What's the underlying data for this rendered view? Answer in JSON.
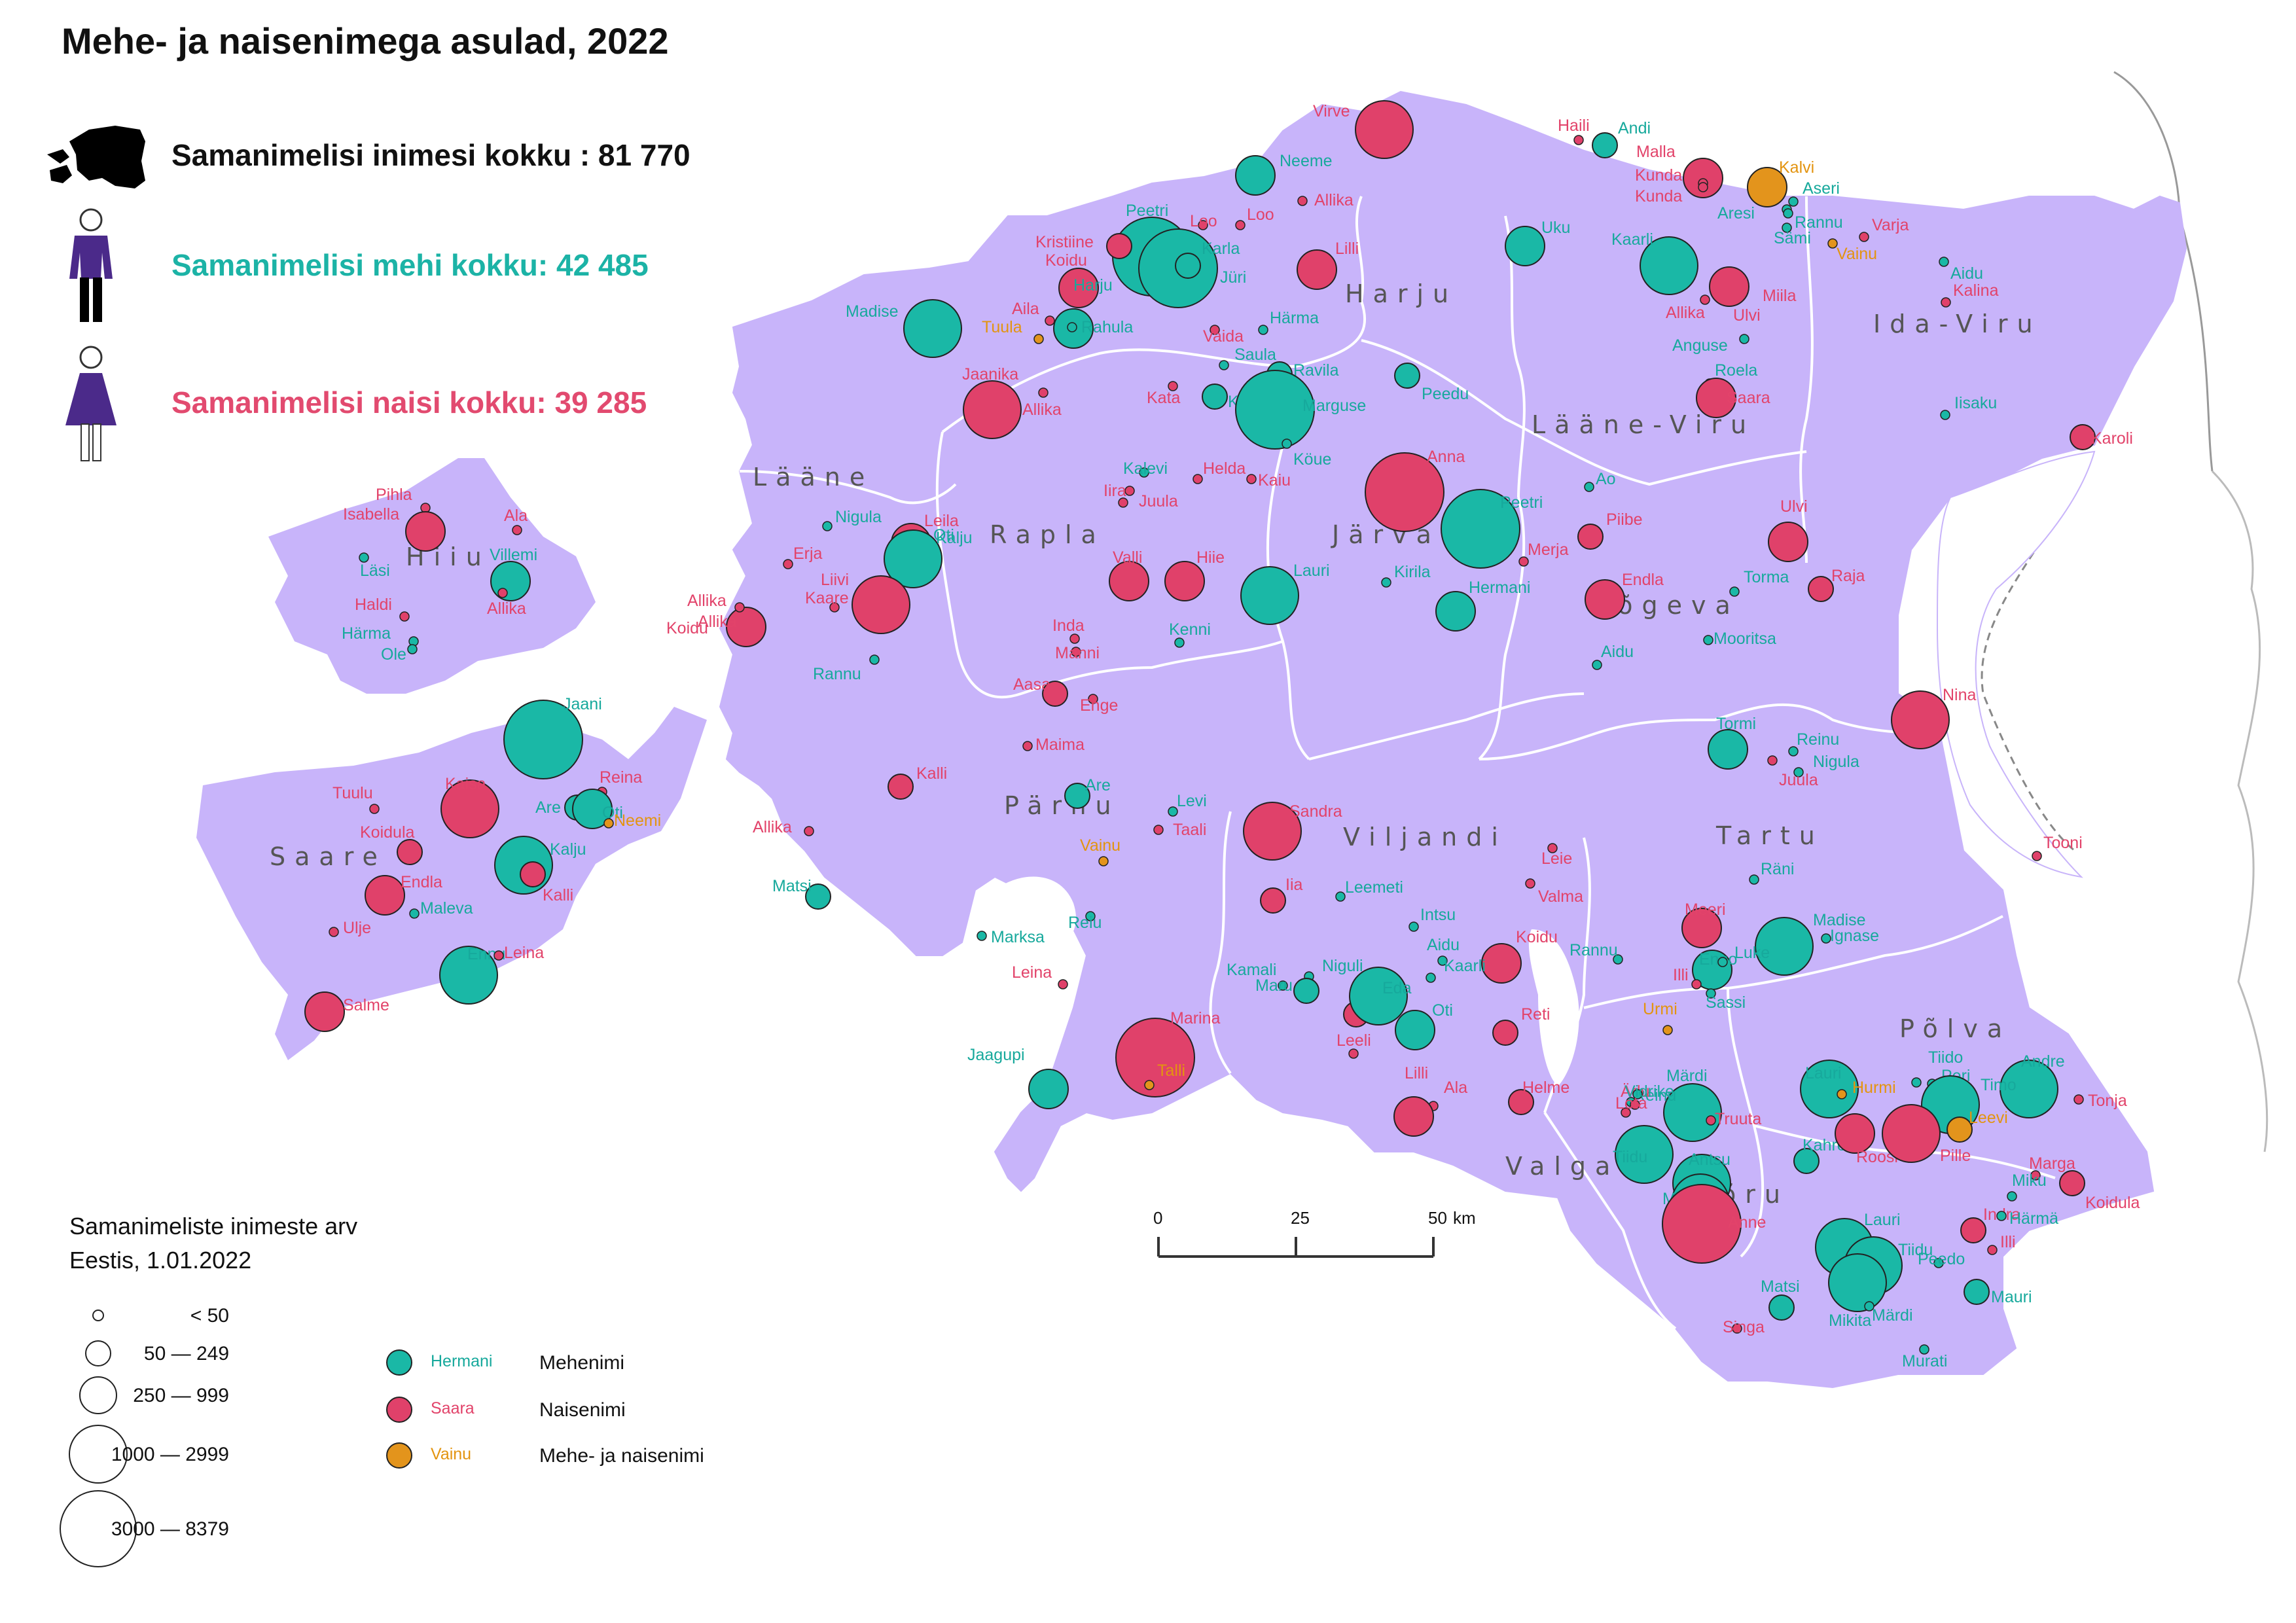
{
  "title": "Mehe- ja naisenimega asulad, 2022",
  "stats": {
    "total": "Samanimelisi inimesi kokku : 81 770",
    "male": "Samanimelisi mehi kokku: 42 485",
    "female": "Samanimelisi naisi kokku: 39 285"
  },
  "colors": {
    "land": "#c8b4fa",
    "male": "#1ab8a6",
    "female": "#e0416a",
    "both": "#e3941c",
    "male_label": "#17a99c",
    "female_label": "#e2436a",
    "both_label": "#e39410"
  },
  "counties": [
    "Harju",
    "Ida-Viru",
    "Lääne-Viru",
    "Lääne",
    "Hiiu",
    "Rapla",
    "Järva",
    "Jõgeva",
    "Saare",
    "Pärnu",
    "Viljandi",
    "Tartu",
    "Põlva",
    "Valga",
    "Võru"
  ],
  "places": [
    {
      "name": "Virve",
      "g": "f",
      "s": 4
    },
    {
      "name": "Haili",
      "g": "f",
      "s": 1
    },
    {
      "name": "Andi",
      "g": "m",
      "s": 2
    },
    {
      "name": "Neeme",
      "g": "m",
      "s": 3
    },
    {
      "name": "Allika",
      "g": "f",
      "s": 1
    },
    {
      "name": "Malla",
      "g": "f",
      "s": 3
    },
    {
      "name": "Kalvi",
      "g": "b",
      "s": 3
    },
    {
      "name": "Kunda",
      "g": "f",
      "s": 1
    },
    {
      "name": "Kunda",
      "g": "f",
      "s": 1
    },
    {
      "name": "Aseri",
      "g": "m",
      "s": 1
    },
    {
      "name": "Aresi",
      "g": "m",
      "s": 1
    },
    {
      "name": "Rannu",
      "g": "m",
      "s": 1
    },
    {
      "name": "Peetri",
      "g": "m",
      "s": 5
    },
    {
      "name": "Loo",
      "g": "f",
      "s": 1
    },
    {
      "name": "Loo",
      "g": "f",
      "s": 1
    },
    {
      "name": "Uku",
      "g": "m",
      "s": 3
    },
    {
      "name": "Sämi",
      "g": "m",
      "s": 1
    },
    {
      "name": "Varja",
      "g": "f",
      "s": 1
    },
    {
      "name": "Kristiine",
      "g": "f",
      "s": 2
    },
    {
      "name": "Karla",
      "g": "m",
      "s": 5
    },
    {
      "name": "Kaarli",
      "g": "m",
      "s": 4
    },
    {
      "name": "Vainu",
      "g": "b",
      "s": 1
    },
    {
      "name": "Koidu",
      "g": "f",
      "s": 3
    },
    {
      "name": "Lilli",
      "g": "f",
      "s": 3
    },
    {
      "name": "Jüri",
      "g": "m",
      "s": 2
    },
    {
      "name": "Aidu",
      "g": "m",
      "s": 1
    },
    {
      "name": "Miila",
      "g": "f",
      "s": 1
    },
    {
      "name": "Madise",
      "g": "m",
      "s": 4
    },
    {
      "name": "Aila",
      "g": "f",
      "s": 1
    },
    {
      "name": "Harju",
      "g": "m",
      "s": 3
    },
    {
      "name": "Kalina",
      "g": "f",
      "s": 1
    },
    {
      "name": "Allika",
      "g": "f",
      "s": 1
    },
    {
      "name": "Ulvi",
      "g": "f",
      "s": 3
    },
    {
      "name": "Tuula",
      "g": "b",
      "s": 1
    },
    {
      "name": "Rahula",
      "g": "m",
      "s": 1
    },
    {
      "name": "Härma",
      "g": "m",
      "s": 1
    },
    {
      "name": "Vaida",
      "g": "f",
      "s": 1
    },
    {
      "name": "Anguse",
      "g": "m",
      "s": 1
    },
    {
      "name": "Saula",
      "g": "m",
      "s": 1
    },
    {
      "name": "Ravila",
      "g": "m",
      "s": 2
    },
    {
      "name": "Roela",
      "g": "m",
      "s": 1
    },
    {
      "name": "Jaanika",
      "g": "f",
      "s": 4
    },
    {
      "name": "Peedu",
      "g": "m",
      "s": 2
    },
    {
      "name": "Saara",
      "g": "f",
      "s": 3
    },
    {
      "name": "Kata",
      "g": "f",
      "s": 1
    },
    {
      "name": "Karla",
      "g": "m",
      "s": 2
    },
    {
      "name": "Marguse",
      "g": "m",
      "s": 5
    },
    {
      "name": "Allika",
      "g": "f",
      "s": 1
    },
    {
      "name": "Iisaku",
      "g": "m",
      "s": 1
    },
    {
      "name": "Karoli",
      "g": "f",
      "s": 2
    },
    {
      "name": "Köue",
      "g": "m",
      "s": 1
    },
    {
      "name": "Kalevi",
      "g": "m",
      "s": 1
    },
    {
      "name": "Helda",
      "g": "f",
      "s": 1
    },
    {
      "name": "Anna",
      "g": "f",
      "s": 5
    },
    {
      "name": "Kaiu",
      "g": "f",
      "s": 1
    },
    {
      "name": "Ao",
      "g": "m",
      "s": 1
    },
    {
      "name": "Iira",
      "g": "f",
      "s": 1
    },
    {
      "name": "Juula",
      "g": "f",
      "s": 1
    },
    {
      "name": "Pihla",
      "g": "f",
      "s": 1
    },
    {
      "name": "Isabella",
      "g": "f",
      "s": 3
    },
    {
      "name": "Ala",
      "g": "f",
      "s": 1
    },
    {
      "name": "Nigula",
      "g": "m",
      "s": 1
    },
    {
      "name": "Leila",
      "g": "f",
      "s": 3
    },
    {
      "name": "Peetri",
      "g": "m",
      "s": 5
    },
    {
      "name": "Oti",
      "g": "m",
      "s": 3
    },
    {
      "name": "Kalju",
      "g": "m",
      "s": 4
    },
    {
      "name": "Piibe",
      "g": "f",
      "s": 2
    },
    {
      "name": "Ulvi",
      "g": "f",
      "s": 3
    },
    {
      "name": "Villemi",
      "g": "m",
      "s": 3
    },
    {
      "name": "Läsi",
      "g": "m",
      "s": 1
    },
    {
      "name": "Erja",
      "g": "f",
      "s": 1
    },
    {
      "name": "Valli",
      "g": "f",
      "s": 3
    },
    {
      "name": "Hiie",
      "g": "f",
      "s": 3
    },
    {
      "name": "Merja",
      "g": "f",
      "s": 1
    },
    {
      "name": "Allika",
      "g": "f",
      "s": 1
    },
    {
      "name": "Lauri",
      "g": "m",
      "s": 4
    },
    {
      "name": "Kirila",
      "g": "m",
      "s": 1
    },
    {
      "name": "Endla",
      "g": "f",
      "s": 3
    },
    {
      "name": "Torma",
      "g": "m",
      "s": 1
    },
    {
      "name": "Raja",
      "g": "f",
      "s": 2
    },
    {
      "name": "Haldi",
      "g": "f",
      "s": 1
    },
    {
      "name": "Allika",
      "g": "f",
      "s": 1
    },
    {
      "name": "Liivi",
      "g": "f",
      "s": 4
    },
    {
      "name": "Kaare",
      "g": "f",
      "s": 1
    },
    {
      "name": "Hermani",
      "g": "m",
      "s": 3
    },
    {
      "name": "Härma",
      "g": "m",
      "s": 1
    },
    {
      "name": "Koidu",
      "g": "f",
      "s": 3
    },
    {
      "name": "Allika",
      "g": "f",
      "s": 1
    },
    {
      "name": "Inda",
      "g": "f",
      "s": 1
    },
    {
      "name": "Kenni",
      "g": "m",
      "s": 1
    },
    {
      "name": "Mooritsa",
      "g": "m",
      "s": 1
    },
    {
      "name": "Ole",
      "g": "m",
      "s": 1
    },
    {
      "name": "Manni",
      "g": "f",
      "s": 1
    },
    {
      "name": "Aidu",
      "g": "m",
      "s": 1
    },
    {
      "name": "Rannu",
      "g": "m",
      "s": 1
    },
    {
      "name": "Aasa",
      "g": "f",
      "s": 2
    },
    {
      "name": "Enge",
      "g": "f",
      "s": 1
    },
    {
      "name": "Nina",
      "g": "f",
      "s": 4
    },
    {
      "name": "Jaani",
      "g": "m",
      "s": 5
    },
    {
      "name": "Maima",
      "g": "f",
      "s": 1
    },
    {
      "name": "Tormi",
      "g": "m",
      "s": 3
    },
    {
      "name": "Reinu",
      "g": "m",
      "s": 1
    },
    {
      "name": "Nigula",
      "g": "m",
      "s": 1
    },
    {
      "name": "Juula",
      "g": "f",
      "s": 1
    },
    {
      "name": "Kalli",
      "g": "f",
      "s": 2
    },
    {
      "name": "Are",
      "g": "m",
      "s": 2
    },
    {
      "name": "Tuulu",
      "g": "f",
      "s": 1
    },
    {
      "name": "Kaisa",
      "g": "f",
      "s": 4
    },
    {
      "name": "Reina",
      "g": "f",
      "s": 1
    },
    {
      "name": "Are",
      "g": "m",
      "s": 2
    },
    {
      "name": "Oti",
      "g": "m",
      "s": 3
    },
    {
      "name": "Neemi",
      "g": "b",
      "s": 1
    },
    {
      "name": "Levi",
      "g": "m",
      "s": 1
    },
    {
      "name": "Sandra",
      "g": "f",
      "s": 4
    },
    {
      "name": "Taali",
      "g": "f",
      "s": 1
    },
    {
      "name": "Koidula",
      "g": "f",
      "s": 2
    },
    {
      "name": "Kalju",
      "g": "m",
      "s": 4
    },
    {
      "name": "Allika",
      "g": "f",
      "s": 1
    },
    {
      "name": "Vainu",
      "g": "b",
      "s": 1
    },
    {
      "name": "Leie",
      "g": "f",
      "s": 1
    },
    {
      "name": "Tooni",
      "g": "f",
      "s": 1
    },
    {
      "name": "Räni",
      "g": "m",
      "s": 1
    },
    {
      "name": "Endla",
      "g": "f",
      "s": 3
    },
    {
      "name": "Kalli",
      "g": "f",
      "s": 2
    },
    {
      "name": "Iia",
      "g": "f",
      "s": 2
    },
    {
      "name": "Leemeti",
      "g": "m",
      "s": 1
    },
    {
      "name": "Valma",
      "g": "f",
      "s": 1
    },
    {
      "name": "Matsi",
      "g": "m",
      "s": 2
    },
    {
      "name": "Ulje",
      "g": "f",
      "s": 1
    },
    {
      "name": "Maleva",
      "g": "m",
      "s": 1
    },
    {
      "name": "Reiu",
      "g": "m",
      "s": 1
    },
    {
      "name": "Meeri",
      "g": "f",
      "s": 3
    },
    {
      "name": "Madise",
      "g": "m",
      "s": 4
    },
    {
      "name": "Ignase",
      "g": "m",
      "s": 1
    },
    {
      "name": "Intsu",
      "g": "m",
      "s": 1
    },
    {
      "name": "Marksa",
      "g": "m",
      "s": 1
    },
    {
      "name": "Leina",
      "g": "f",
      "s": 1
    },
    {
      "name": "Ennu",
      "g": "m",
      "s": 4
    },
    {
      "name": "Aidu",
      "g": "m",
      "s": 1
    },
    {
      "name": "Koidu",
      "g": "f",
      "s": 3
    },
    {
      "name": "Rannu",
      "g": "m",
      "s": 1
    },
    {
      "name": "Enno",
      "g": "m",
      "s": 3
    },
    {
      "name": "Luke",
      "g": "m",
      "s": 1
    },
    {
      "name": "Kamali",
      "g": "m",
      "s": 1
    },
    {
      "name": "Niguli",
      "g": "m",
      "s": 1
    },
    {
      "name": "Kaarli",
      "g": "m",
      "s": 1
    },
    {
      "name": "Illi",
      "g": "f",
      "s": 1
    },
    {
      "name": "Leina",
      "g": "f",
      "s": 1
    },
    {
      "name": "Maru",
      "g": "m",
      "s": 2
    },
    {
      "name": "Salme",
      "g": "f",
      "s": 3
    },
    {
      "name": "Kulla",
      "g": "f",
      "s": 2
    },
    {
      "name": "Eda",
      "g": "m",
      "s": 4
    },
    {
      "name": "Sassi",
      "g": "m",
      "s": 1
    },
    {
      "name": "Oti",
      "g": "m",
      "s": 3
    },
    {
      "name": "Marina",
      "g": "f",
      "s": 5
    },
    {
      "name": "Urmi",
      "g": "b",
      "s": 1
    },
    {
      "name": "Reti",
      "g": "f",
      "s": 2
    },
    {
      "name": "Leeli",
      "g": "f",
      "s": 1
    },
    {
      "name": "Jaagupi",
      "g": "m",
      "s": 3
    },
    {
      "name": "Talli",
      "g": "b",
      "s": 1
    },
    {
      "name": "Tiido",
      "g": "m",
      "s": 1
    },
    {
      "name": "Peri",
      "g": "m",
      "s": 1
    },
    {
      "name": "Andre",
      "g": "m",
      "s": 4
    },
    {
      "name": "Lauri",
      "g": "m",
      "s": 4
    },
    {
      "name": "Hurmi",
      "g": "b",
      "s": 1
    },
    {
      "name": "Timo",
      "g": "m",
      "s": 4
    },
    {
      "name": "Ala",
      "g": "f",
      "s": 1
    },
    {
      "name": "Helme",
      "g": "f",
      "s": 2
    },
    {
      "name": "Märdi",
      "g": "m",
      "s": 4
    },
    {
      "name": "Reinu",
      "g": "m",
      "s": 1
    },
    {
      "name": "Ädu",
      "g": "f",
      "s": 1
    },
    {
      "name": "Vidrike",
      "g": "m",
      "s": 1
    },
    {
      "name": "Leevi",
      "g": "b",
      "s": 2
    },
    {
      "name": "Tonja",
      "g": "f",
      "s": 1
    },
    {
      "name": "Lilli",
      "g": "f",
      "s": 3
    },
    {
      "name": "Lota",
      "g": "f",
      "s": 1
    },
    {
      "name": "Truuta",
      "g": "f",
      "s": 1
    },
    {
      "name": "Tiidu",
      "g": "m",
      "s": 4
    },
    {
      "name": "Kahro",
      "g": "m",
      "s": 2
    },
    {
      "name": "Roosi",
      "g": "f",
      "s": 3
    },
    {
      "name": "Pille",
      "g": "f",
      "s": 4
    },
    {
      "name": "Marga",
      "g": "f",
      "s": 1
    },
    {
      "name": "Antsu",
      "g": "m",
      "s": 4
    },
    {
      "name": "Madise",
      "g": "m",
      "s": 4
    },
    {
      "name": "Anne",
      "g": "f",
      "s": 5
    },
    {
      "name": "Miku",
      "g": "m",
      "s": 1
    },
    {
      "name": "Koidula",
      "g": "f",
      "s": 2
    },
    {
      "name": "Indra",
      "g": "f",
      "s": 2
    },
    {
      "name": "Härmä",
      "g": "m",
      "s": 1
    },
    {
      "name": "Lauri",
      "g": "m",
      "s": 4
    },
    {
      "name": "Tiidu",
      "g": "m",
      "s": 4
    },
    {
      "name": "Illi",
      "g": "f",
      "s": 1
    },
    {
      "name": "Peedo",
      "g": "m",
      "s": 1
    },
    {
      "name": "Mauri",
      "g": "m",
      "s": 2
    },
    {
      "name": "Matsi",
      "g": "m",
      "s": 2
    },
    {
      "name": "Mikita",
      "g": "m",
      "s": 4
    },
    {
      "name": "Märdi",
      "g": "m",
      "s": 1
    },
    {
      "name": "Singa",
      "g": "f",
      "s": 1
    },
    {
      "name": "Murati",
      "g": "m",
      "s": 1
    }
  ],
  "scalebar": {
    "ticks": [
      "0",
      "25",
      "50"
    ],
    "unit": "km"
  },
  "legend": {
    "title_line1": "Samanimeliste inimeste arv",
    "title_line2": "Eestis, 1.01.2022",
    "sizes": [
      "< 50",
      "50 —   249",
      "250 —   999",
      "1000 — 2999",
      "3000 — 8379"
    ],
    "types": [
      {
        "sample": "Hermani",
        "label": "Mehenimi",
        "g": "m"
      },
      {
        "sample": "Saara",
        "label": "Naisenimi",
        "g": "f"
      },
      {
        "sample": "Vainu",
        "label": "Mehe- ja naisenimi",
        "g": "b"
      }
    ]
  }
}
